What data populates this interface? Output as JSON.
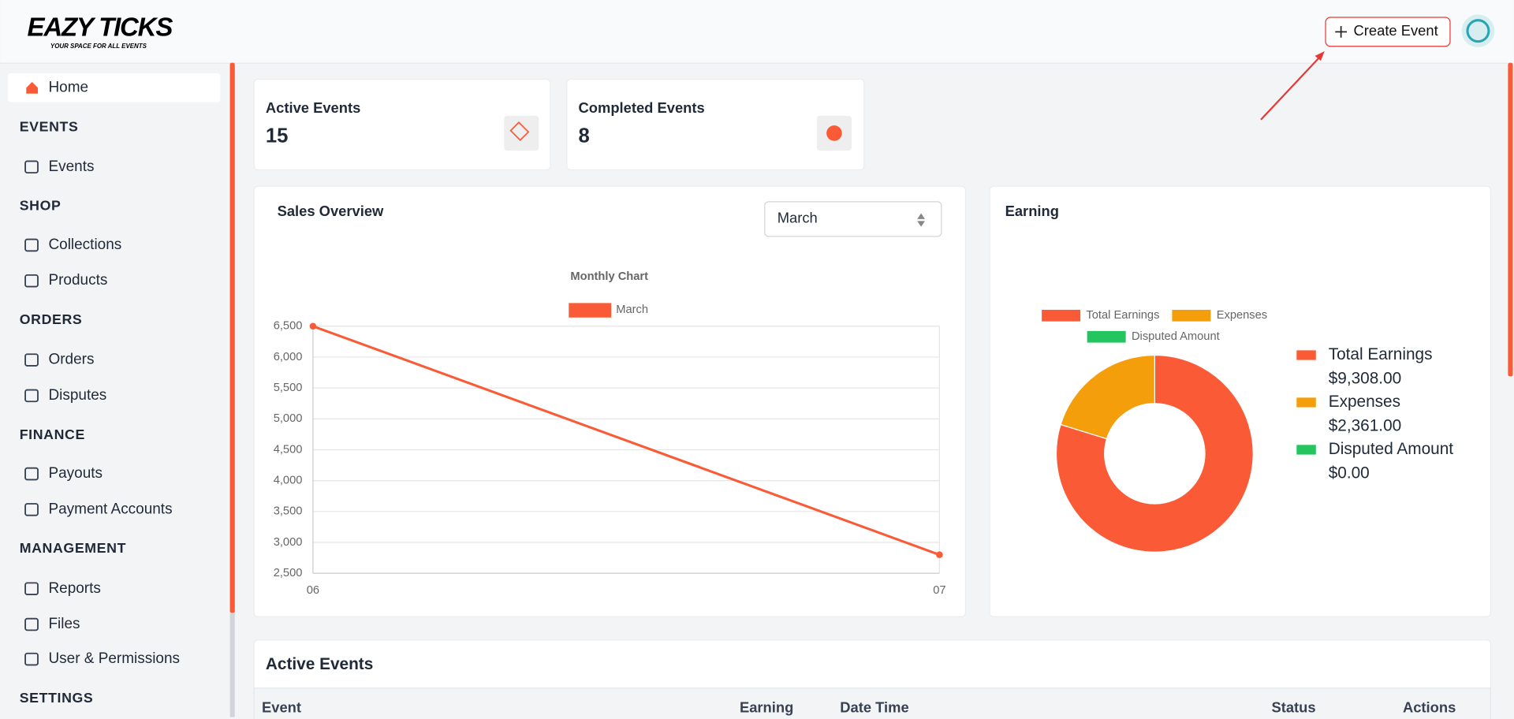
{
  "header": {
    "logo": "EAZY TICKS",
    "tagline": "YOUR SPACE FOR ALL EVENTS",
    "create_button": "Create Event"
  },
  "sidebar": {
    "home": "Home",
    "sections": [
      {
        "title": "EVENTS",
        "items": [
          "Events"
        ]
      },
      {
        "title": "SHOP",
        "items": [
          "Collections",
          "Products"
        ]
      },
      {
        "title": "ORDERS",
        "items": [
          "Orders",
          "Disputes"
        ]
      },
      {
        "title": "FINANCE",
        "items": [
          "Payouts",
          "Payment Accounts"
        ]
      },
      {
        "title": "MANAGEMENT",
        "items": [
          "Reports",
          "Files",
          "User & Permissions"
        ]
      },
      {
        "title": "SETTINGS",
        "items": []
      }
    ]
  },
  "stats": [
    {
      "label": "Active Events",
      "value": 15
    },
    {
      "label": "Completed Events",
      "value": 8
    }
  ],
  "sales_overview": {
    "title": "Sales Overview",
    "select": "March",
    "chart_data": {
      "type": "line",
      "title": "Monthly Chart",
      "categories": [
        "06",
        "07"
      ],
      "series": [
        {
          "name": "March",
          "color": "#fa5a35",
          "values": [
            6500,
            2800
          ]
        }
      ],
      "ylim": [
        2500,
        6500
      ],
      "yticks": [
        {
          "value": 2500,
          "label": "2,500"
        },
        {
          "value": 3000,
          "label": "3,000"
        },
        {
          "value": 3500,
          "label": "3,500"
        },
        {
          "value": 4000,
          "label": "4,000"
        },
        {
          "value": 4500,
          "label": "4,500"
        },
        {
          "value": 5000,
          "label": "5,000"
        },
        {
          "value": 5500,
          "label": "5,500"
        },
        {
          "value": 6000,
          "label": "6,000"
        },
        {
          "value": 6500,
          "label": "6,500"
        }
      ],
      "grid": true
    }
  },
  "earning": {
    "title": "Earning",
    "chart_data": {
      "type": "doughnut",
      "categories": [
        "Total Earnings",
        "Expenses",
        "Disputed Amount"
      ],
      "values": [
        9308,
        2361,
        0
      ],
      "value_labels": [
        "$9,308.00",
        "$2,361.00",
        "$0.00"
      ],
      "colors": [
        "#fa5a35",
        "#f59e0b",
        "#22c55e"
      ]
    }
  },
  "active_events": {
    "title": "Active Events",
    "columns": [
      "Event",
      "Earning",
      "Date Time",
      "Status",
      "Actions"
    ]
  }
}
